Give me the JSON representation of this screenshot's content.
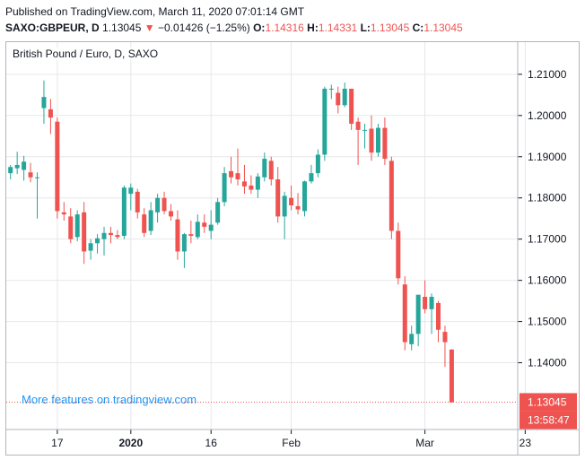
{
  "header": {
    "published_line": "Published on TradingView.com, March 11, 2020 07:01:14 GMT",
    "symbol": "SAXO:GBPEUR, D",
    "last": "1.13045",
    "arrow": "▼",
    "change": "−0.01426 (−1.25%)",
    "open_label": "O:",
    "open": "1.14316",
    "high_label": "H:",
    "high": "1.14331",
    "low_label": "L:",
    "low": "1.13045",
    "close_label": "C:",
    "close": "1.13045"
  },
  "legend_title": "British Pound / Euro, D, SAXO",
  "promo_text": "More features on tradingview.com",
  "price_tag": "1.13045",
  "countdown_tag": "13:58:47",
  "colors": {
    "up": "#26a69a",
    "down": "#ef5350",
    "grid": "#e6e7ea",
    "promo": "#2196f3"
  },
  "chart_data": {
    "type": "candlestick",
    "y_ticks": [
      "1.21000",
      "1.20000",
      "1.19000",
      "1.18000",
      "1.17000",
      "1.16000",
      "1.15000",
      "1.14000"
    ],
    "x_ticks": [
      {
        "label": "17",
        "index": 7,
        "bold": false
      },
      {
        "label": "2020",
        "index": 18,
        "bold": true
      },
      {
        "label": "16",
        "index": 30,
        "bold": false
      },
      {
        "label": "Feb",
        "index": 42,
        "bold": false
      },
      {
        "label": "Mar",
        "index": 62,
        "bold": false
      },
      {
        "label": "23",
        "index": 77,
        "bold": false
      }
    ],
    "ylim": [
      1.1238,
      1.2178
    ],
    "x_slots": 80,
    "last_value": 1.13045,
    "candles": [
      {
        "o": 1.186,
        "h": 1.188,
        "l": 1.1845,
        "c": 1.1875
      },
      {
        "o": 1.1872,
        "h": 1.1912,
        "l": 1.1858,
        "c": 1.188
      },
      {
        "o": 1.1868,
        "h": 1.1902,
        "l": 1.1842,
        "c": 1.1888
      },
      {
        "o": 1.1862,
        "h": 1.1885,
        "l": 1.1838,
        "c": 1.185
      },
      {
        "o": 1.185,
        "h": 1.1862,
        "l": 1.175,
        "c": 1.185
      },
      {
        "o": 1.2018,
        "h": 1.2085,
        "l": 1.198,
        "c": 1.2045
      },
      {
        "o": 1.2015,
        "h": 1.204,
        "l": 1.1955,
        "c": 1.1995
      },
      {
        "o": 1.1985,
        "h": 1.1995,
        "l": 1.175,
        "c": 1.1768
      },
      {
        "o": 1.1765,
        "h": 1.179,
        "l": 1.1745,
        "c": 1.176
      },
      {
        "o": 1.1755,
        "h": 1.1775,
        "l": 1.169,
        "c": 1.17
      },
      {
        "o": 1.1705,
        "h": 1.177,
        "l": 1.1695,
        "c": 1.176
      },
      {
        "o": 1.1765,
        "h": 1.179,
        "l": 1.164,
        "c": 1.167
      },
      {
        "o": 1.1672,
        "h": 1.17,
        "l": 1.165,
        "c": 1.169
      },
      {
        "o": 1.169,
        "h": 1.1712,
        "l": 1.1665,
        "c": 1.1702
      },
      {
        "o": 1.17,
        "h": 1.173,
        "l": 1.166,
        "c": 1.1715
      },
      {
        "o": 1.1715,
        "h": 1.173,
        "l": 1.169,
        "c": 1.171
      },
      {
        "o": 1.171,
        "h": 1.1722,
        "l": 1.17,
        "c": 1.1705
      },
      {
        "o": 1.1708,
        "h": 1.183,
        "l": 1.17,
        "c": 1.1825
      },
      {
        "o": 1.181,
        "h": 1.1835,
        "l": 1.177,
        "c": 1.1825
      },
      {
        "o": 1.1815,
        "h": 1.1822,
        "l": 1.175,
        "c": 1.1765
      },
      {
        "o": 1.176,
        "h": 1.1775,
        "l": 1.1705,
        "c": 1.1715
      },
      {
        "o": 1.172,
        "h": 1.179,
        "l": 1.171,
        "c": 1.177
      },
      {
        "o": 1.1765,
        "h": 1.181,
        "l": 1.174,
        "c": 1.18
      },
      {
        "o": 1.18,
        "h": 1.1815,
        "l": 1.176,
        "c": 1.1768
      },
      {
        "o": 1.1768,
        "h": 1.1785,
        "l": 1.1745,
        "c": 1.1755
      },
      {
        "o": 1.1748,
        "h": 1.177,
        "l": 1.165,
        "c": 1.167
      },
      {
        "o": 1.167,
        "h": 1.1715,
        "l": 1.163,
        "c": 1.1712
      },
      {
        "o": 1.1712,
        "h": 1.1745,
        "l": 1.169,
        "c": 1.1708
      },
      {
        "o": 1.1705,
        "h": 1.176,
        "l": 1.17,
        "c": 1.1742
      },
      {
        "o": 1.174,
        "h": 1.176,
        "l": 1.1715,
        "c": 1.173
      },
      {
        "o": 1.172,
        "h": 1.177,
        "l": 1.17,
        "c": 1.1735
      },
      {
        "o": 1.174,
        "h": 1.18,
        "l": 1.1735,
        "c": 1.179
      },
      {
        "o": 1.179,
        "h": 1.1875,
        "l": 1.178,
        "c": 1.186
      },
      {
        "o": 1.1865,
        "h": 1.19,
        "l": 1.1835,
        "c": 1.185
      },
      {
        "o": 1.186,
        "h": 1.192,
        "l": 1.183,
        "c": 1.1845
      },
      {
        "o": 1.184,
        "h": 1.188,
        "l": 1.181,
        "c": 1.1828
      },
      {
        "o": 1.183,
        "h": 1.1855,
        "l": 1.181,
        "c": 1.182
      },
      {
        "o": 1.182,
        "h": 1.186,
        "l": 1.18,
        "c": 1.1852
      },
      {
        "o": 1.185,
        "h": 1.191,
        "l": 1.184,
        "c": 1.1895
      },
      {
        "o": 1.189,
        "h": 1.19,
        "l": 1.183,
        "c": 1.1845
      },
      {
        "o": 1.1845,
        "h": 1.1875,
        "l": 1.174,
        "c": 1.1755
      },
      {
        "o": 1.1755,
        "h": 1.1815,
        "l": 1.17,
        "c": 1.1805
      },
      {
        "o": 1.18,
        "h": 1.183,
        "l": 1.177,
        "c": 1.1782
      },
      {
        "o": 1.178,
        "h": 1.1812,
        "l": 1.176,
        "c": 1.1772
      },
      {
        "o": 1.1768,
        "h": 1.1842,
        "l": 1.1755,
        "c": 1.184
      },
      {
        "o": 1.184,
        "h": 1.188,
        "l": 1.1835,
        "c": 1.186
      },
      {
        "o": 1.186,
        "h": 1.1918,
        "l": 1.185,
        "c": 1.1905
      },
      {
        "o": 1.1905,
        "h": 1.207,
        "l": 1.189,
        "c": 1.2065
      },
      {
        "o": 1.2065,
        "h": 1.2075,
        "l": 1.204,
        "c": 1.2065
      },
      {
        "o": 1.2055,
        "h": 1.207,
        "l": 1.2005,
        "c": 1.2025
      },
      {
        "o": 1.2025,
        "h": 1.208,
        "l": 1.202,
        "c": 1.2065
      },
      {
        "o": 1.2065,
        "h": 1.206,
        "l": 1.1965,
        "c": 1.198
      },
      {
        "o": 1.1985,
        "h": 1.1995,
        "l": 1.188,
        "c": 1.1965
      },
      {
        "o": 1.1965,
        "h": 1.198,
        "l": 1.192,
        "c": 1.1965
      },
      {
        "o": 1.1968,
        "h": 1.2,
        "l": 1.189,
        "c": 1.191
      },
      {
        "o": 1.191,
        "h": 1.198,
        "l": 1.19,
        "c": 1.197
      },
      {
        "o": 1.197,
        "h": 1.1995,
        "l": 1.188,
        "c": 1.1895
      },
      {
        "o": 1.189,
        "h": 1.19,
        "l": 1.17,
        "c": 1.172
      },
      {
        "o": 1.172,
        "h": 1.174,
        "l": 1.159,
        "c": 1.1605
      },
      {
        "o": 1.159,
        "h": 1.161,
        "l": 1.143,
        "c": 1.145
      },
      {
        "o": 1.1445,
        "h": 1.149,
        "l": 1.143,
        "c": 1.147
      },
      {
        "o": 1.147,
        "h": 1.1565,
        "l": 1.144,
        "c": 1.1565
      },
      {
        "o": 1.156,
        "h": 1.16,
        "l": 1.152,
        "c": 1.153
      },
      {
        "o": 1.153,
        "h": 1.1568,
        "l": 1.147,
        "c": 1.156
      },
      {
        "o": 1.1545,
        "h": 1.155,
        "l": 1.145,
        "c": 1.148
      },
      {
        "o": 1.1475,
        "h": 1.149,
        "l": 1.139,
        "c": 1.145
      },
      {
        "o": 1.1432,
        "h": 1.1433,
        "l": 1.1304,
        "c": 1.1304
      }
    ]
  }
}
